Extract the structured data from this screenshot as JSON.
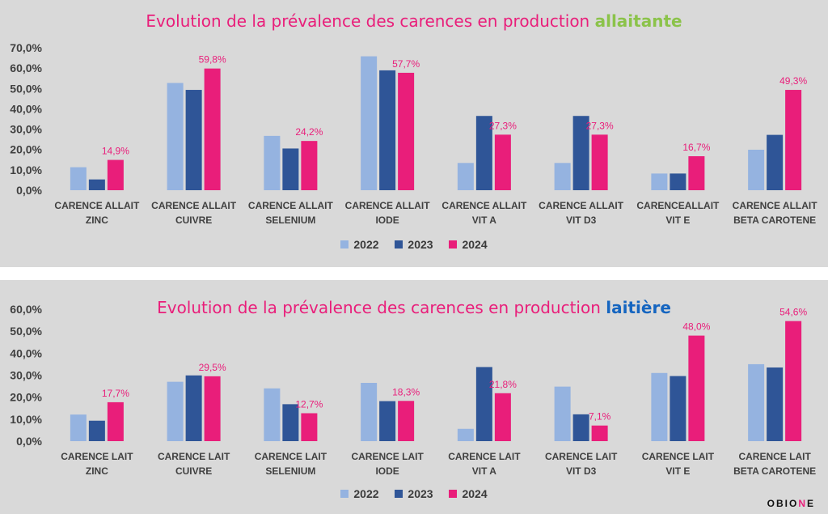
{
  "colors": {
    "2022": "#95b3e0",
    "2023": "#2f5597",
    "2024": "#e91e7a",
    "background": "#d9d9d9"
  },
  "logo": {
    "text_a": "OBIO",
    "text_b": "N",
    "text_c": "E"
  },
  "charts": [
    {
      "title_prefix": "Evolution de la prévalence des carences en production",
      "title_highlight": "allaitante",
      "highlight_color": "#8bc34a",
      "legend": [
        "2022",
        "2023",
        "2024"
      ]
    },
    {
      "title_prefix": "Evolution de la prévalence des carences en production",
      "title_highlight": "laitière",
      "highlight_color": "#1565c0",
      "legend": [
        "2022",
        "2023",
        "2024"
      ]
    }
  ],
  "chart_data": [
    {
      "type": "bar",
      "title": "Evolution de la prévalence des carences en production allaitante",
      "categories": [
        [
          "CARENCE ALLAIT",
          "ZINC"
        ],
        [
          "CARENCE ALLAIT",
          "CUIVRE"
        ],
        [
          "CARENCE  ALLAIT",
          "SELENIUM"
        ],
        [
          "CARENCE ALLAIT",
          "IODE"
        ],
        [
          "CARENCE ALLAIT",
          "VIT A"
        ],
        [
          "CARENCE ALLAIT",
          "VIT D3"
        ],
        [
          "CARENCEALLAIT",
          "VIT E"
        ],
        [
          "CARENCE ALLAIT",
          "BETA CAROTENE"
        ]
      ],
      "series": [
        {
          "name": "2022",
          "values": [
            11.3,
            52.7,
            26.7,
            65.8,
            13.4,
            13.4,
            8.2,
            19.9
          ]
        },
        {
          "name": "2023",
          "values": [
            5.3,
            49.3,
            20.5,
            58.9,
            36.5,
            36.5,
            8.2,
            27.2
          ]
        },
        {
          "name": "2024",
          "values": [
            14.9,
            59.8,
            24.2,
            57.7,
            27.3,
            27.3,
            16.7,
            49.3
          ]
        }
      ],
      "data_labels": [
        "14,9%",
        "59,8%",
        "24,2%",
        "57,7%",
        "27,3%",
        "27,3%",
        "16,7%",
        "49,3%"
      ],
      "yticks": [
        "0,0%",
        "10,0%",
        "20,0%",
        "30,0%",
        "40,0%",
        "50,0%",
        "60,0%",
        "70,0%"
      ],
      "ylim": [
        0,
        70
      ],
      "legend_position": "bottom"
    },
    {
      "type": "bar",
      "title": "Evolution de la prévalence des carences en production laitière",
      "categories": [
        [
          "CARENCE LAIT",
          "ZINC"
        ],
        [
          "CARENCE LAIT",
          "CUIVRE"
        ],
        [
          "CARENCE LAIT",
          "SELENIUM"
        ],
        [
          "CARENCE LAIT",
          "IODE"
        ],
        [
          "CARENCE LAIT",
          "VIT A"
        ],
        [
          "CARENCE LAIT",
          "VIT D3"
        ],
        [
          "CARENCE LAIT",
          "VIT E"
        ],
        [
          "CARENCE LAIT",
          "BETA CAROTENE"
        ]
      ],
      "series": [
        {
          "name": "2022",
          "values": [
            12.1,
            27.0,
            24.0,
            26.5,
            5.6,
            24.8,
            31.0,
            35.0
          ]
        },
        {
          "name": "2023",
          "values": [
            9.3,
            29.9,
            16.8,
            18.2,
            33.7,
            12.2,
            29.6,
            33.5
          ]
        },
        {
          "name": "2024",
          "values": [
            17.7,
            29.5,
            12.7,
            18.3,
            21.8,
            7.1,
            48.0,
            54.6
          ]
        }
      ],
      "data_labels": [
        "17,7%",
        "29,5%",
        "12,7%",
        "18,3%",
        "21,8%",
        "7,1%",
        "48,0%",
        "54,6%"
      ],
      "yticks": [
        "0,0%",
        "10,0%",
        "20,0%",
        "30,0%",
        "40,0%",
        "50,0%",
        "60,0%"
      ],
      "ylim": [
        0,
        60
      ],
      "legend_position": "bottom"
    }
  ]
}
